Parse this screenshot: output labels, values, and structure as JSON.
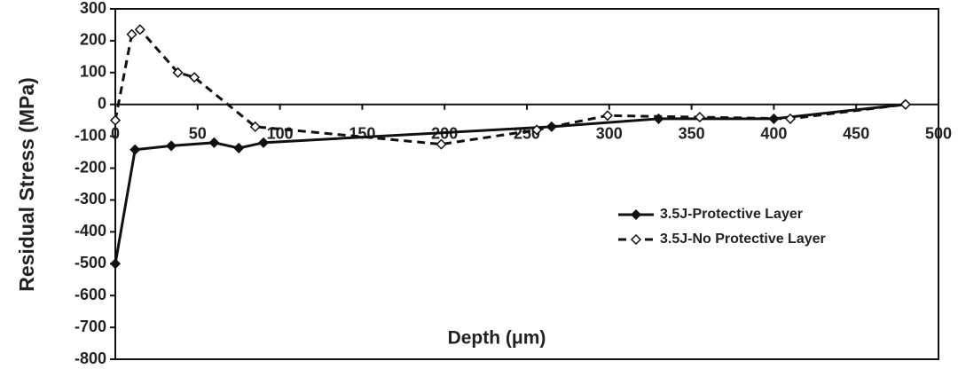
{
  "chart_data": {
    "type": "line",
    "x_label": "Depth (μm)",
    "y_label": "Residual Stress (MPa)",
    "xlim": [
      0,
      500
    ],
    "xticks": [
      0,
      50,
      100,
      150,
      200,
      250,
      300,
      350,
      400,
      450,
      500
    ],
    "ylim": [
      -800,
      300
    ],
    "yticks": [
      -800,
      -700,
      -600,
      -500,
      -400,
      -300,
      -200,
      -100,
      0,
      100,
      200,
      300
    ],
    "series": [
      {
        "name": "3.5J-Protective Layer",
        "color": "#111111",
        "line_style": "solid",
        "marker": "filled-diamond",
        "x": [
          0,
          12,
          34,
          60,
          75,
          90,
          265,
          330,
          400,
          480
        ],
        "values": [
          -500,
          -142,
          -130,
          -120,
          -137,
          -120,
          -70,
          -45,
          -45,
          0
        ]
      },
      {
        "name": "3.5J-No Protective Layer",
        "color": "#111111",
        "line_style": "dashed",
        "marker": "open-diamond",
        "x": [
          0,
          10,
          15,
          38,
          48,
          85,
          198,
          256,
          299,
          355,
          410,
          480
        ],
        "values": [
          -50,
          220,
          235,
          100,
          85,
          -70,
          -125,
          -80,
          -35,
          -40,
          -45,
          0
        ]
      }
    ]
  }
}
